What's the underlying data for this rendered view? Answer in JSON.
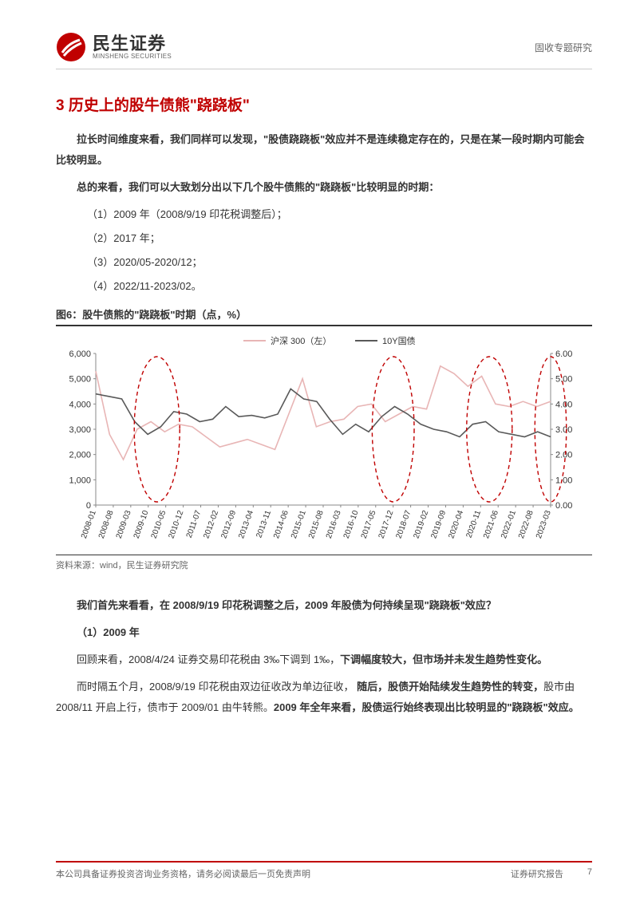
{
  "header": {
    "company_cn": "民生证券",
    "company_en": "MINSHENG SECURITIES",
    "doc_type": "固收专题研究",
    "logo_color": "#c00000"
  },
  "section": {
    "title": "3 历史上的股牛债熊\"跷跷板\""
  },
  "paragraphs": {
    "p1": "拉长时间维度来看，我们同样可以发现，\"股债跷跷板\"效应并不是连续稳定存在的，只是在某一段时期内可能会比较明显。",
    "p2": "总的来看，我们可以大致划分出以下几个股牛债熊的\"跷跷板\"比较明显的时期：",
    "li1": "（1）2009 年（2008/9/19 印花税调整后）；",
    "li2": "（2）2017 年；",
    "li3": "（3）2020/05-2020/12；",
    "li4": "（4）2022/11-2023/02。",
    "p3a": "我们首先来看看，在 2008/9/19 印花税调整之后，2009 年股债为何持续呈现\"跷跷板\"效应？",
    "p3_head": "（1）2009 年",
    "p4a": "回顾来看，2008/4/24 证券交易印花税由 3‰下调到 1‰，",
    "p4b": "下调幅度较大，但市场并未发生趋势性变化。",
    "p5a": "而时隔五个月，2008/9/19 印花税由双边征收改为单边征收，",
    "p5b": "随后，股债开始陆续发生趋势性的转变，",
    "p5c": "股市由 2008/11 开启上行，债市于 2009/01 由牛转熊。",
    "p5d": "2009 年全年来看，股债运行始终表现出比较明显的\"跷跷板\"效应。"
  },
  "chart": {
    "title": "图6：股牛债熊的\"跷跷板\"时期（点，%）",
    "source": "资料来源：wind，民生证券研究院",
    "legend": {
      "series1": "沪深 300（左）",
      "series2": "10Y国债"
    },
    "colors": {
      "series1": "#e8b5b5",
      "series2": "#595959",
      "ellipse": "#c00000",
      "axis": "#888888",
      "grid": "#e0e0e0",
      "text": "#333333",
      "bg": "#ffffff"
    },
    "y_left": {
      "min": 0,
      "max": 6000,
      "step": 1000
    },
    "y_right": {
      "min": 0.0,
      "max": 6.0,
      "step": 1.0
    },
    "x_labels": [
      "2008-01",
      "2008-08",
      "2009-03",
      "2009-10",
      "2010-05",
      "2010-12",
      "2011-07",
      "2012-02",
      "2012-09",
      "2013-04",
      "2013-11",
      "2014-06",
      "2015-01",
      "2015-08",
      "2016-03",
      "2016-10",
      "2017-05",
      "2017-12",
      "2018-07",
      "2019-02",
      "2019-09",
      "2020-04",
      "2020-11",
      "2021-06",
      "2022-01",
      "2022-08",
      "2023-03"
    ],
    "csi300": [
      5300,
      2800,
      1800,
      3000,
      3300,
      2900,
      3200,
      3100,
      2700,
      2300,
      2450,
      2600,
      2400,
      2200,
      3600,
      5000,
      3100,
      3300,
      3400,
      3900,
      4000,
      3300,
      3600,
      3900,
      3800,
      5500,
      5200,
      4700,
      5100,
      4000,
      3900,
      4100,
      3900,
      4100
    ],
    "bond10y": [
      4.4,
      4.3,
      4.2,
      3.3,
      2.8,
      3.1,
      3.7,
      3.6,
      3.3,
      3.4,
      3.9,
      3.5,
      3.55,
      3.45,
      3.6,
      4.6,
      4.2,
      4.1,
      3.4,
      2.8,
      3.2,
      2.9,
      3.5,
      3.9,
      3.6,
      3.2,
      3.0,
      2.9,
      2.7,
      3.2,
      3.3,
      2.9,
      2.8,
      2.7,
      2.9,
      2.7
    ],
    "ellipses": [
      {
        "cx_idx": 3.5,
        "rx_idx": 1.3
      },
      {
        "cx_idx": 17.0,
        "rx_idx": 1.2
      },
      {
        "cx_idx": 22.5,
        "rx_idx": 1.3
      },
      {
        "cx_idx": 26.0,
        "rx_idx": 0.9
      }
    ]
  },
  "footer": {
    "left": "本公司具备证券投资咨询业务资格，请务必阅读最后一页免责声明",
    "right_label": "证券研究报告",
    "page": "7"
  }
}
